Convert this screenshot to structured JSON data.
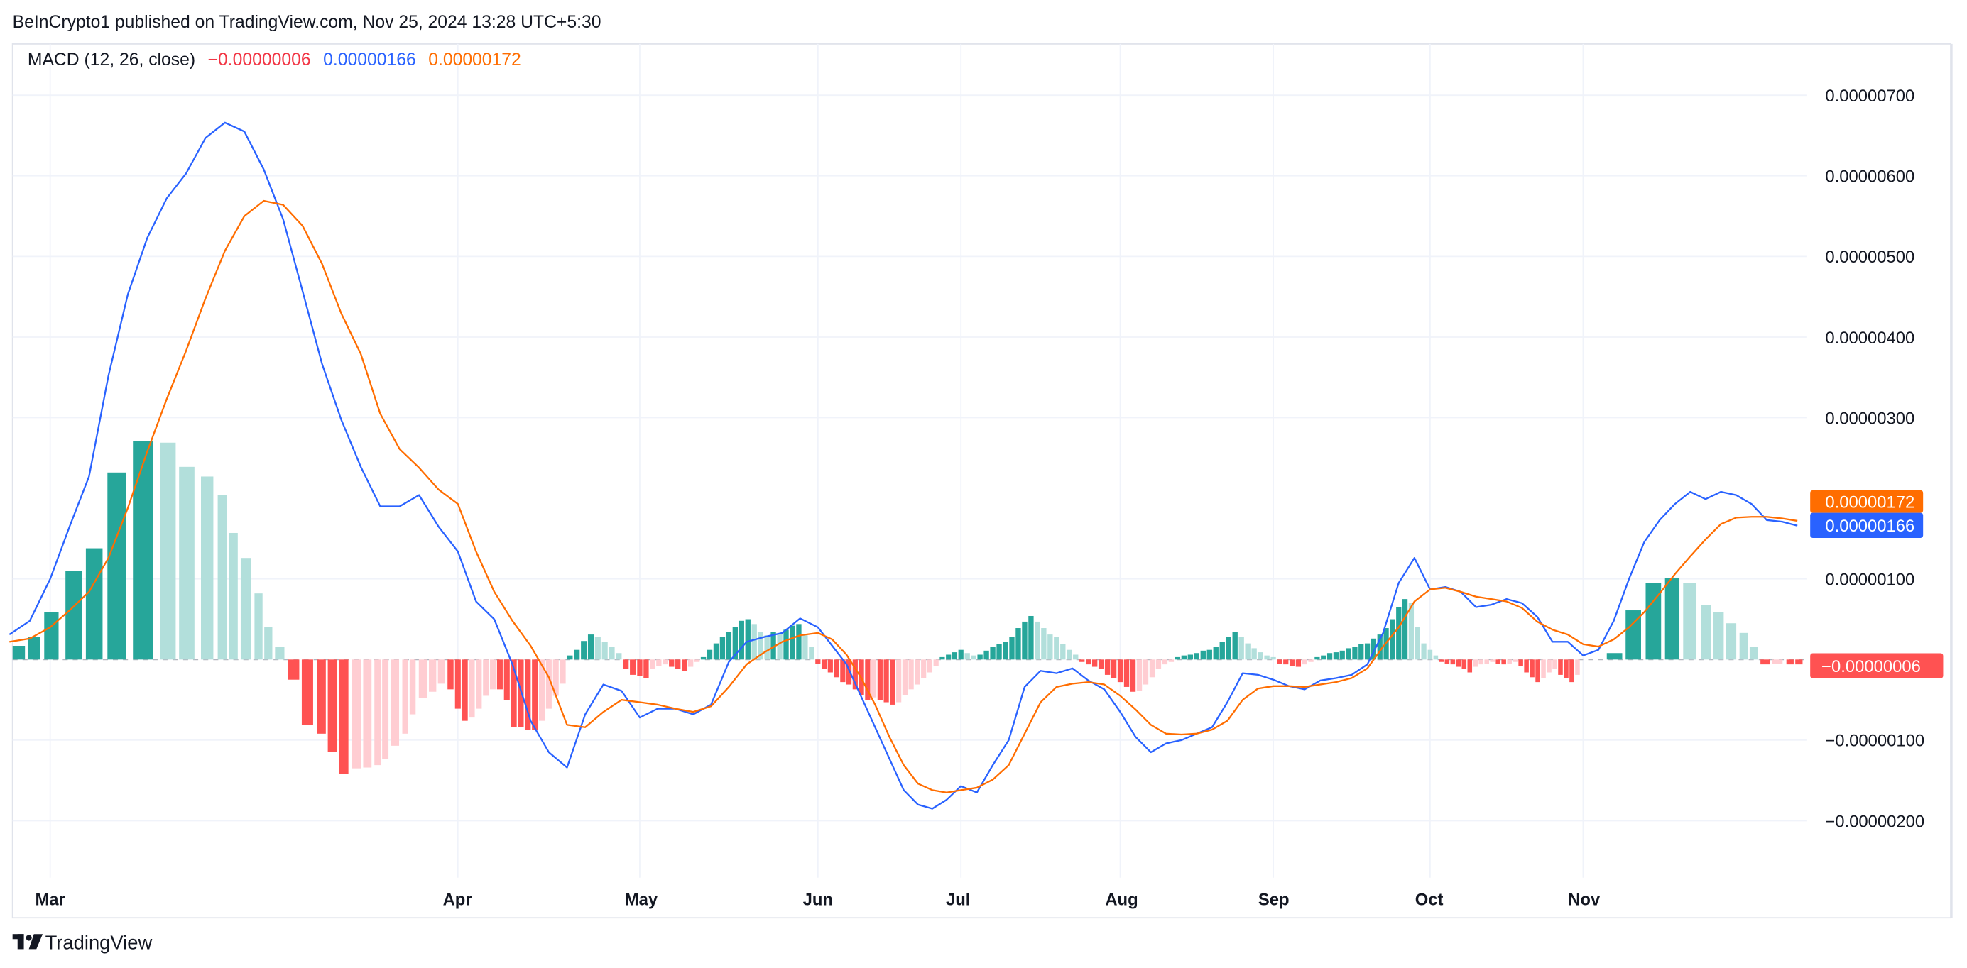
{
  "header": {
    "published": "BeInCrypto1 published on TradingView.com, Nov 25, 2024 13:28 UTC+5:30"
  },
  "legend": {
    "name": "MACD (12, 26, close)",
    "histogram_value": "−0.00000006",
    "macd_value": "0.00000166",
    "signal_value": "0.00000172"
  },
  "tags": {
    "signal": "0.00000172",
    "macd": "0.00000166",
    "histogram": "−0.00000006"
  },
  "footer": {
    "brand": "TradingView"
  },
  "colors": {
    "macd": "#2962ff",
    "signal": "#ff6d00",
    "hist_pos_grow": "#26a69a",
    "hist_pos_fall": "#b2dfdb",
    "hist_neg_fall": "#ff5252",
    "hist_neg_rise": "#ffcdd2"
  },
  "chart_data": {
    "type": "line",
    "title": "MACD (12, 26, close)",
    "value_unit": "1e-8",
    "ylim": [
      -270,
      770
    ],
    "grid": true,
    "y_ticks": [
      {
        "v": 700,
        "label": "0.00000700"
      },
      {
        "v": 600,
        "label": "0.00000600"
      },
      {
        "v": 500,
        "label": "0.00000500"
      },
      {
        "v": 400,
        "label": "0.00000400"
      },
      {
        "v": 300,
        "label": "0.00000300"
      },
      {
        "v": 100,
        "label": "0.00000100"
      },
      {
        "v": -100,
        "label": "−0.00000100"
      },
      {
        "v": -200,
        "label": "−0.00000200"
      }
    ],
    "x_ticks": [
      {
        "m": 0,
        "label": "Mar"
      },
      {
        "m": 1,
        "label": "Apr"
      },
      {
        "m": 2,
        "label": "May"
      },
      {
        "m": 3,
        "label": "Jun"
      },
      {
        "m": 4,
        "label": "Jul"
      },
      {
        "m": 5,
        "label": "Aug"
      },
      {
        "m": 6,
        "label": "Sep"
      },
      {
        "m": 7,
        "label": "Oct"
      },
      {
        "m": 8,
        "label": "Nov"
      }
    ],
    "series": [
      {
        "name": "MACD",
        "segments": [
          {
            "m": -1,
            "from": 0.9,
            "to": 1.0,
            "values": [
              31,
              48
            ]
          },
          {
            "m": 0,
            "values": [
              100,
              165,
              227,
              352,
              453,
              523,
              572,
              603,
              647,
              666,
              655,
              608,
              546,
              457,
              367,
              297,
              239,
              190,
              190,
              204,
              165
            ]
          },
          {
            "m": 1,
            "values": [
              134,
              72,
              50,
              -6,
              -76,
              -115,
              -134,
              -68,
              -31,
              -39
            ]
          },
          {
            "m": 2,
            "values": [
              -72,
              -61,
              -61,
              -68,
              -56,
              -3,
              22,
              28,
              33,
              51
            ]
          },
          {
            "m": 3,
            "values": [
              40,
              17,
              -6,
              -45,
              -84,
              -123,
              -162,
              -180,
              -185,
              -174
            ]
          },
          {
            "m": 4,
            "values": [
              -157,
              -165,
              -131,
              -100,
              -34,
              -14,
              -17,
              -11,
              -26,
              -37
            ]
          },
          {
            "m": 5,
            "values": [
              -65,
              -96,
              -115,
              -104,
              -100,
              -92,
              -84,
              -53,
              -17,
              -19
            ]
          },
          {
            "m": 6,
            "values": [
              -25,
              -33,
              -37,
              -26,
              -23,
              -19,
              -6,
              33,
              95,
              126
            ]
          },
          {
            "m": 7,
            "values": [
              87,
              90,
              84,
              65,
              68,
              75,
              70,
              53,
              22,
              22
            ]
          },
          {
            "m": 8,
            "values": [
              5,
              12,
              48,
              100,
              146,
              173,
              193,
              208,
              199,
              208
            ]
          },
          {
            "m": 9,
            "from": 0,
            "to": 0.5,
            "values": [
              204,
              193,
              173,
              171,
              166
            ]
          }
        ]
      },
      {
        "name": "Signal",
        "segments": [
          {
            "m": -1,
            "from": 0.9,
            "to": 1.0,
            "values": [
              22,
              26
            ]
          },
          {
            "m": 0,
            "values": [
              40,
              61,
              84,
              126,
              188,
              258,
              323,
              383,
              448,
              507,
              550,
              569,
              564,
              538,
              491,
              429,
              379,
              305,
              261,
              238,
              211
            ]
          },
          {
            "m": 1,
            "values": [
              193,
              134,
              84,
              48,
              17,
              -22,
              -81,
              -84,
              -65,
              -50
            ]
          },
          {
            "m": 2,
            "values": [
              -53,
              -56,
              -61,
              -65,
              -58,
              -34,
              -6,
              9,
              22,
              30
            ]
          },
          {
            "m": 3,
            "values": [
              33,
              25,
              6,
              -22,
              -56,
              -96,
              -131,
              -154,
              -162,
              -165
            ]
          },
          {
            "m": 4,
            "values": [
              -162,
              -159,
              -149,
              -131,
              -92,
              -53,
              -34,
              -30,
              -28,
              -31
            ]
          },
          {
            "m": 5,
            "values": [
              -45,
              -62,
              -81,
              -92,
              -93,
              -92,
              -87,
              -76,
              -50,
              -36
            ]
          },
          {
            "m": 6,
            "values": [
              -33,
              -33,
              -34,
              -31,
              -28,
              -23,
              -11,
              16,
              40,
              72
            ]
          },
          {
            "m": 7,
            "values": [
              87,
              89,
              84,
              78,
              75,
              72,
              64,
              47,
              37,
              31
            ]
          },
          {
            "m": 8,
            "values": [
              19,
              16,
              25,
              40,
              59,
              82,
              106,
              128,
              149,
              168
            ]
          },
          {
            "m": 9,
            "from": 0,
            "to": 0.5,
            "values": [
              176,
              177,
              177,
              175,
              172
            ]
          }
        ]
      }
    ],
    "histogram": [
      {
        "m": -1,
        "at": [
          0.923,
          0.96
        ],
        "values": [
          17,
          28
        ]
      },
      {
        "m": 0,
        "at": [
          0.003,
          0.058,
          0.108,
          0.163,
          0.228,
          0.289,
          0.335,
          0.385,
          0.422,
          0.449,
          0.48,
          0.511,
          0.535,
          0.563,
          0.597,
          0.631,
          0.665,
          0.692,
          0.72,
          0.751,
          0.778,
          0.803,
          0.822,
          0.846,
          0.871,
          0.889,
          0.914,
          0.938,
          0.96,
          0.982
        ],
        "values": [
          59,
          110,
          138,
          232,
          271,
          269,
          239,
          227,
          204,
          157,
          126,
          82,
          40,
          16,
          -25,
          -81,
          -92,
          -115,
          -142,
          -135,
          -134,
          -131,
          -123,
          -107,
          -92,
          -68,
          -48,
          -40,
          -30,
          -37
        ]
      },
      {
        "m": 1,
        "values": [
          -61,
          -76,
          -72,
          -61,
          -45,
          -37,
          -37,
          -50,
          -84,
          -84,
          -87,
          -87,
          -76,
          -61,
          -45,
          -30,
          5,
          12,
          23,
          31,
          28,
          22,
          16,
          8,
          -12,
          -19
        ]
      },
      {
        "m": 2,
        "values": [
          -20,
          -23,
          -12,
          -8,
          -6,
          -9,
          -12,
          -14,
          -9,
          -3,
          3,
          12,
          20,
          28,
          34,
          40,
          48,
          50,
          44,
          34,
          30,
          34,
          32,
          37,
          42,
          44,
          30,
          16
        ]
      },
      {
        "m": 3,
        "values": [
          -5,
          -12,
          -16,
          -22,
          -28,
          -31,
          -37,
          -44,
          -50,
          -47,
          -50,
          -53,
          -56,
          -53,
          -44,
          -37,
          -31,
          -23,
          -16,
          -8,
          3,
          6,
          9
        ]
      },
      {
        "m": 4,
        "values": [
          12,
          8,
          5,
          6,
          11,
          16,
          19,
          22,
          28,
          39,
          47,
          54,
          47,
          39,
          31,
          28,
          19,
          12,
          6,
          -3,
          -6,
          -9,
          -12,
          -19,
          -23
        ]
      },
      {
        "m": 5,
        "values": [
          -28,
          -34,
          -40,
          -39,
          -31,
          -22,
          -12,
          -6,
          -3,
          3,
          5,
          6,
          8,
          11,
          12,
          16,
          22,
          28,
          34,
          28,
          20,
          14,
          9,
          5
        ]
      },
      {
        "m": 6,
        "values": [
          3,
          -5,
          -6,
          -8,
          -9,
          -6,
          -3,
          3,
          5,
          8,
          9,
          11,
          14,
          16,
          19,
          20,
          26,
          31,
          39,
          50,
          65,
          75,
          70,
          40,
          20
        ]
      },
      {
        "m": 7,
        "values": [
          12,
          5,
          -3,
          -5,
          -6,
          -9,
          -12,
          -16,
          -9,
          -6,
          -5,
          -3,
          -5,
          -6,
          -5,
          -3,
          -8,
          -16,
          -22,
          -28,
          -23,
          -16,
          -12,
          -19,
          -23,
          -28,
          -19
        ]
      },
      {
        "m": 8,
        "at": [
          0.205,
          0.328,
          0.459,
          0.582,
          0.697,
          0.803,
          0.885,
          0.967
        ],
        "values": [
          8,
          61,
          95,
          101,
          95,
          68,
          59,
          45
        ]
      },
      {
        "m": 9,
        "at": [
          0.049,
          0.115,
          0.189,
          0.27,
          0.352,
          0.41
        ],
        "values": [
          33,
          16,
          -6,
          -5,
          -6,
          -6
        ]
      }
    ]
  }
}
